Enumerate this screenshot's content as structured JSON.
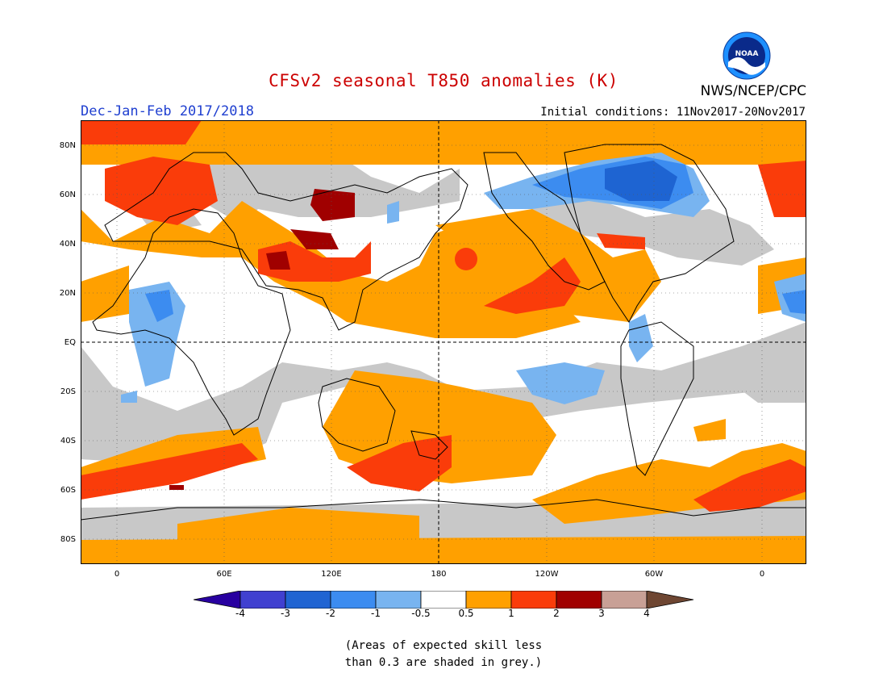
{
  "header": {
    "title": "CFSv2 seasonal T850 anomalies (K)",
    "period": "Dec-Jan-Feb 2017/2018",
    "initial_conditions": "Initial conditions: 11Nov2017-20Nov2017",
    "agency": "NWS/NCEP/CPC",
    "logo_text": "NOAA"
  },
  "map": {
    "lat_labels": [
      "80N",
      "60N",
      "40N",
      "20N",
      "EQ",
      "20S",
      "40S",
      "60S",
      "80S"
    ],
    "lon_labels": [
      "0",
      "60E",
      "120E",
      "180",
      "120W",
      "60W",
      "0"
    ],
    "colors": {
      "grey_low_skill": "#c8c8c8",
      "neutral": "#ffffff",
      "pos_0_5_1": "#ffa000",
      "pos_1_2": "#fa3c0a",
      "pos_2_3": "#a00000",
      "neg_0_5_1": "#78b4f0",
      "neg_1_2": "#3c8cf0",
      "neg_2_3": "#1e64d2"
    }
  },
  "colorbar": {
    "labels": [
      "-4",
      "-3",
      "-2",
      "-1",
      "-0.5",
      "0.5",
      "1",
      "2",
      "3",
      "4"
    ],
    "colors": [
      "#2800a0",
      "#4040d0",
      "#2064d2",
      "#3c8cf0",
      "#78b4f0",
      "#ffffff",
      "#ffa000",
      "#fa3c0a",
      "#a00000",
      "#c8a096",
      "#6e4632"
    ]
  },
  "footnote": {
    "line1": "(Areas of expected skill less",
    "line2": "than 0.3 are shaded in grey.)"
  }
}
